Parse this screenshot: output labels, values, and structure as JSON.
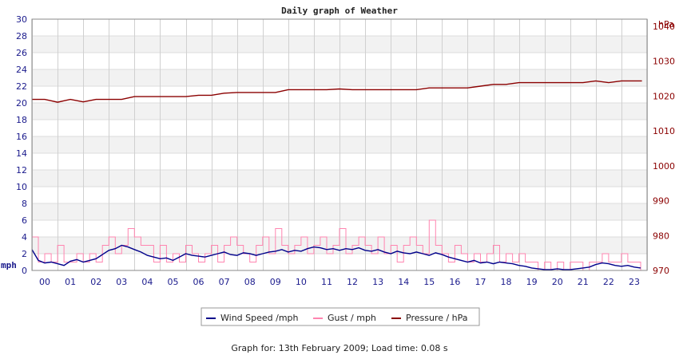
{
  "chart_data": {
    "type": "line",
    "title": "Daily graph of Weather",
    "left_axis": {
      "unit": "mph",
      "ylim": [
        0,
        30
      ],
      "ticks": [
        0,
        2,
        4,
        6,
        8,
        10,
        12,
        14,
        16,
        18,
        20,
        22,
        24,
        26,
        28,
        30
      ]
    },
    "right_axis": {
      "unit": "hPa",
      "ylim": [
        970,
        1042
      ],
      "ticks": [
        970,
        980,
        990,
        1000,
        1010,
        1020,
        1030,
        1040
      ]
    },
    "x_axis": {
      "range": [
        0,
        24
      ],
      "tick_labels": [
        "00",
        "01",
        "02",
        "03",
        "04",
        "05",
        "06",
        "07",
        "08",
        "09",
        "10",
        "11",
        "12",
        "13",
        "14",
        "15",
        "16",
        "17",
        "18",
        "19",
        "20",
        "21",
        "22",
        "23"
      ]
    },
    "grid": true,
    "legend_position": "bottom",
    "series": [
      {
        "name": "Wind Speed /mph",
        "axis": "left",
        "color": "#00008b",
        "x": [
          0,
          0.25,
          0.5,
          0.75,
          1,
          1.25,
          1.5,
          1.75,
          2,
          2.25,
          2.5,
          2.75,
          3,
          3.25,
          3.5,
          3.75,
          4,
          4.25,
          4.5,
          4.75,
          5,
          5.25,
          5.5,
          5.75,
          6,
          6.25,
          6.5,
          6.75,
          7,
          7.25,
          7.5,
          7.75,
          8,
          8.25,
          8.5,
          8.75,
          9,
          9.25,
          9.5,
          9.75,
          10,
          10.25,
          10.5,
          10.75,
          11,
          11.25,
          11.5,
          11.75,
          12,
          12.25,
          12.5,
          12.75,
          13,
          13.25,
          13.5,
          13.75,
          14,
          14.25,
          14.5,
          14.75,
          15,
          15.25,
          15.5,
          15.75,
          16,
          16.25,
          16.5,
          16.75,
          17,
          17.25,
          17.5,
          17.75,
          18,
          18.25,
          18.5,
          18.75,
          19,
          19.25,
          19.5,
          19.75,
          20,
          20.25,
          20.5,
          20.75,
          21,
          21.25,
          21.5,
          21.75,
          22,
          22.25,
          22.5,
          22.75,
          23,
          23.25,
          23.5,
          23.75
        ],
        "values": [
          2.5,
          1.2,
          0.9,
          1.0,
          0.8,
          0.6,
          1.1,
          1.3,
          1.0,
          1.2,
          1.4,
          1.9,
          2.4,
          2.6,
          3.0,
          2.8,
          2.5,
          2.2,
          1.8,
          1.6,
          1.4,
          1.5,
          1.2,
          1.6,
          2.0,
          1.8,
          1.7,
          1.6,
          1.8,
          2.0,
          2.2,
          1.9,
          1.8,
          2.1,
          2.0,
          1.8,
          2.0,
          2.2,
          2.3,
          2.5,
          2.2,
          2.4,
          2.3,
          2.6,
          2.8,
          2.7,
          2.5,
          2.6,
          2.4,
          2.6,
          2.5,
          2.7,
          2.4,
          2.3,
          2.5,
          2.2,
          2.0,
          2.3,
          2.1,
          2.0,
          2.2,
          2.0,
          1.8,
          2.1,
          1.9,
          1.6,
          1.4,
          1.2,
          1.0,
          1.2,
          0.9,
          1.0,
          0.8,
          1.0,
          0.9,
          0.8,
          0.6,
          0.5,
          0.3,
          0.2,
          0.1,
          0.1,
          0.2,
          0.1,
          0.1,
          0.2,
          0.3,
          0.4,
          0.7,
          0.9,
          0.8,
          0.6,
          0.5,
          0.6,
          0.4,
          0.3
        ]
      },
      {
        "name": "Gust / mph",
        "axis": "left",
        "color": "#ff85b0",
        "x": [
          0,
          0.25,
          0.5,
          0.75,
          1,
          1.25,
          1.5,
          1.75,
          2,
          2.25,
          2.5,
          2.75,
          3,
          3.25,
          3.5,
          3.75,
          4,
          4.25,
          4.5,
          4.75,
          5,
          5.25,
          5.5,
          5.75,
          6,
          6.25,
          6.5,
          6.75,
          7,
          7.25,
          7.5,
          7.75,
          8,
          8.25,
          8.5,
          8.75,
          9,
          9.25,
          9.5,
          9.75,
          10,
          10.25,
          10.5,
          10.75,
          11,
          11.25,
          11.5,
          11.75,
          12,
          12.25,
          12.5,
          12.75,
          13,
          13.25,
          13.5,
          13.75,
          14,
          14.25,
          14.5,
          14.75,
          15,
          15.25,
          15.5,
          15.75,
          16,
          16.25,
          16.5,
          16.75,
          17,
          17.25,
          17.5,
          17.75,
          18,
          18.25,
          18.5,
          18.75,
          19,
          19.25,
          19.5,
          19.75,
          20,
          20.25,
          20.5,
          20.75,
          21,
          21.25,
          21.5,
          21.75,
          22,
          22.25,
          22.5,
          22.75,
          23,
          23.25,
          23.5,
          23.75
        ],
        "values": [
          4.0,
          1.0,
          2.0,
          1.0,
          3.0,
          1.0,
          1.0,
          2.0,
          1.0,
          2.0,
          1.0,
          3.0,
          4.0,
          2.0,
          3.0,
          5.0,
          4.0,
          3.0,
          3.0,
          1.0,
          3.0,
          1.0,
          2.0,
          1.0,
          3.0,
          2.0,
          1.0,
          2.0,
          3.0,
          1.0,
          3.0,
          4.0,
          3.0,
          2.0,
          1.0,
          3.0,
          4.0,
          2.0,
          5.0,
          3.0,
          2.0,
          3.0,
          4.0,
          2.0,
          3.0,
          4.0,
          2.0,
          3.0,
          5.0,
          2.0,
          3.0,
          4.0,
          3.0,
          2.0,
          4.0,
          2.0,
          3.0,
          1.0,
          3.0,
          4.0,
          3.0,
          2.0,
          6.0,
          3.0,
          2.0,
          1.0,
          3.0,
          2.0,
          1.0,
          2.0,
          1.0,
          2.0,
          3.0,
          1.0,
          2.0,
          1.0,
          2.0,
          1.0,
          1.0,
          0.0,
          1.0,
          0.0,
          1.0,
          0.0,
          1.0,
          1.0,
          0.0,
          1.0,
          1.0,
          2.0,
          1.0,
          1.0,
          2.0,
          1.0,
          1.0,
          0.0
        ]
      },
      {
        "name": "Pressure / hPa",
        "axis": "right",
        "color": "#8b0000",
        "x": [
          0,
          0.5,
          1,
          1.5,
          2,
          2.5,
          3,
          3.5,
          4,
          4.5,
          5,
          5.5,
          6,
          6.5,
          7,
          7.5,
          8,
          8.5,
          9,
          9.5,
          10,
          10.5,
          11,
          11.5,
          12,
          12.5,
          13,
          13.5,
          14,
          14.5,
          15,
          15.5,
          16,
          16.5,
          17,
          17.5,
          18,
          18.5,
          19,
          19.5,
          20,
          20.5,
          21,
          21.5,
          22,
          22.5,
          23,
          23.5,
          23.8
        ],
        "values": [
          1019,
          1019,
          1018.2,
          1019,
          1018.3,
          1019,
          1019,
          1019,
          1019.8,
          1019.8,
          1019.8,
          1019.8,
          1019.8,
          1020.2,
          1020.2,
          1020.8,
          1021,
          1021,
          1021,
          1021,
          1021.8,
          1021.8,
          1021.8,
          1021.8,
          1022,
          1021.8,
          1021.8,
          1021.8,
          1021.8,
          1021.8,
          1021.8,
          1022.3,
          1022.3,
          1022.3,
          1022.3,
          1022.8,
          1023.3,
          1023.3,
          1023.8,
          1023.8,
          1023.8,
          1023.8,
          1023.8,
          1023.8,
          1024.3,
          1023.8,
          1024.3,
          1024.3,
          1024.3
        ]
      }
    ]
  },
  "footer_text": "Graph for: 13th February 2009; Load time: 0.08 s"
}
